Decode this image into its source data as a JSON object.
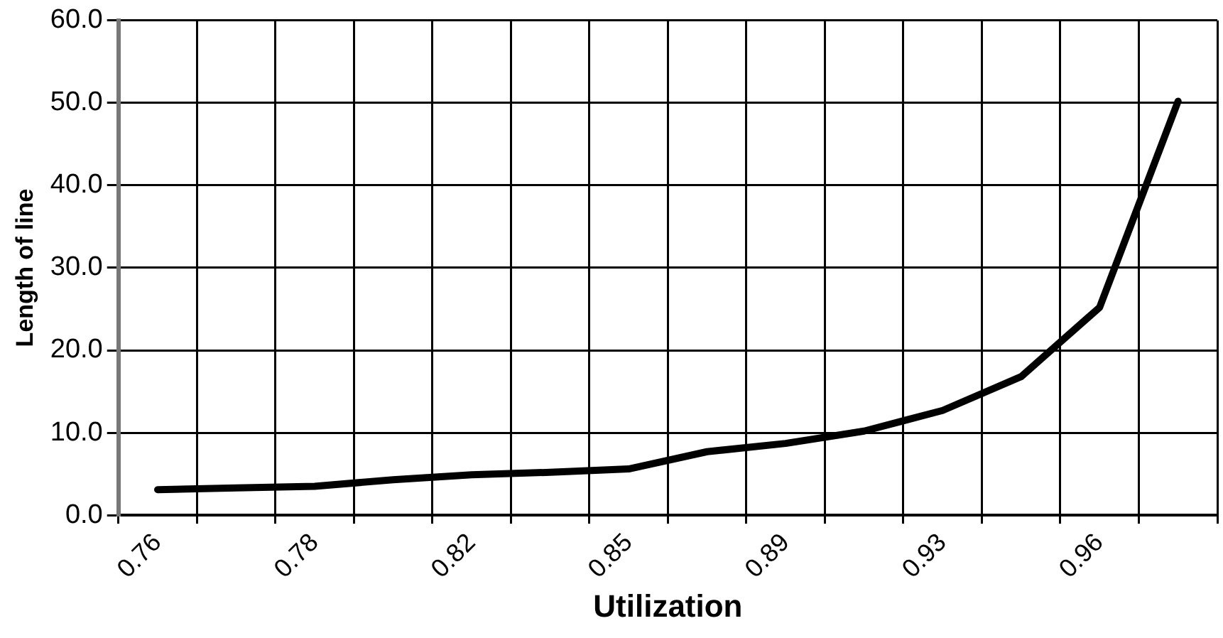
{
  "chart_data": {
    "type": "line",
    "xlabel": "Utilization",
    "ylabel": "Length of line",
    "categories": [
      "0.76",
      null,
      "0.78",
      null,
      "0.82",
      null,
      "0.85",
      null,
      "0.89",
      null,
      "0.93",
      null,
      "0.96",
      null
    ],
    "series": [
      {
        "color": "#000000",
        "values": [
          3.1,
          3.3,
          3.5,
          4.3,
          4.9,
          5.2,
          5.6,
          7.7,
          8.7,
          10.2,
          12.7,
          16.8,
          25.2,
          50.2
        ]
      }
    ],
    "ylim": [
      0,
      60
    ],
    "yticks": [
      {
        "value": 0,
        "label": "0.0"
      },
      {
        "value": 10,
        "label": "10.0"
      },
      {
        "value": 20,
        "label": "20.0"
      },
      {
        "value": 30,
        "label": "30.0"
      },
      {
        "value": 40,
        "label": "40.0"
      },
      {
        "value": 50,
        "label": "50.0"
      },
      {
        "value": 60,
        "label": "60.0"
      }
    ],
    "grid": true,
    "legend": false,
    "marker": "none",
    "line_style": "solid"
  }
}
